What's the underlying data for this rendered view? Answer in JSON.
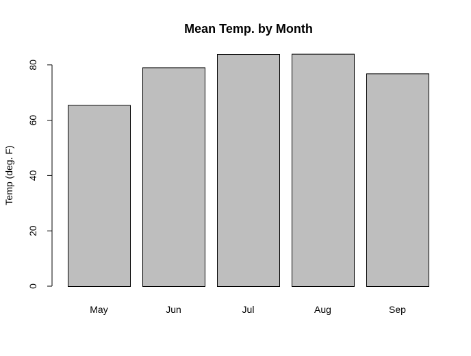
{
  "chart_data": {
    "type": "bar",
    "title": "Mean Temp. by Month",
    "xlabel": "",
    "ylabel": "Temp (deg. F)",
    "categories": [
      "May",
      "Jun",
      "Jul",
      "Aug",
      "Sep"
    ],
    "values": [
      65.5,
      79.1,
      83.9,
      84.0,
      76.9
    ],
    "ylim": [
      0,
      84
    ],
    "yticks": [
      0,
      20,
      40,
      60,
      80
    ],
    "bar_color": "#bebebe",
    "bar_edge_color": "#000000",
    "grid": false
  }
}
